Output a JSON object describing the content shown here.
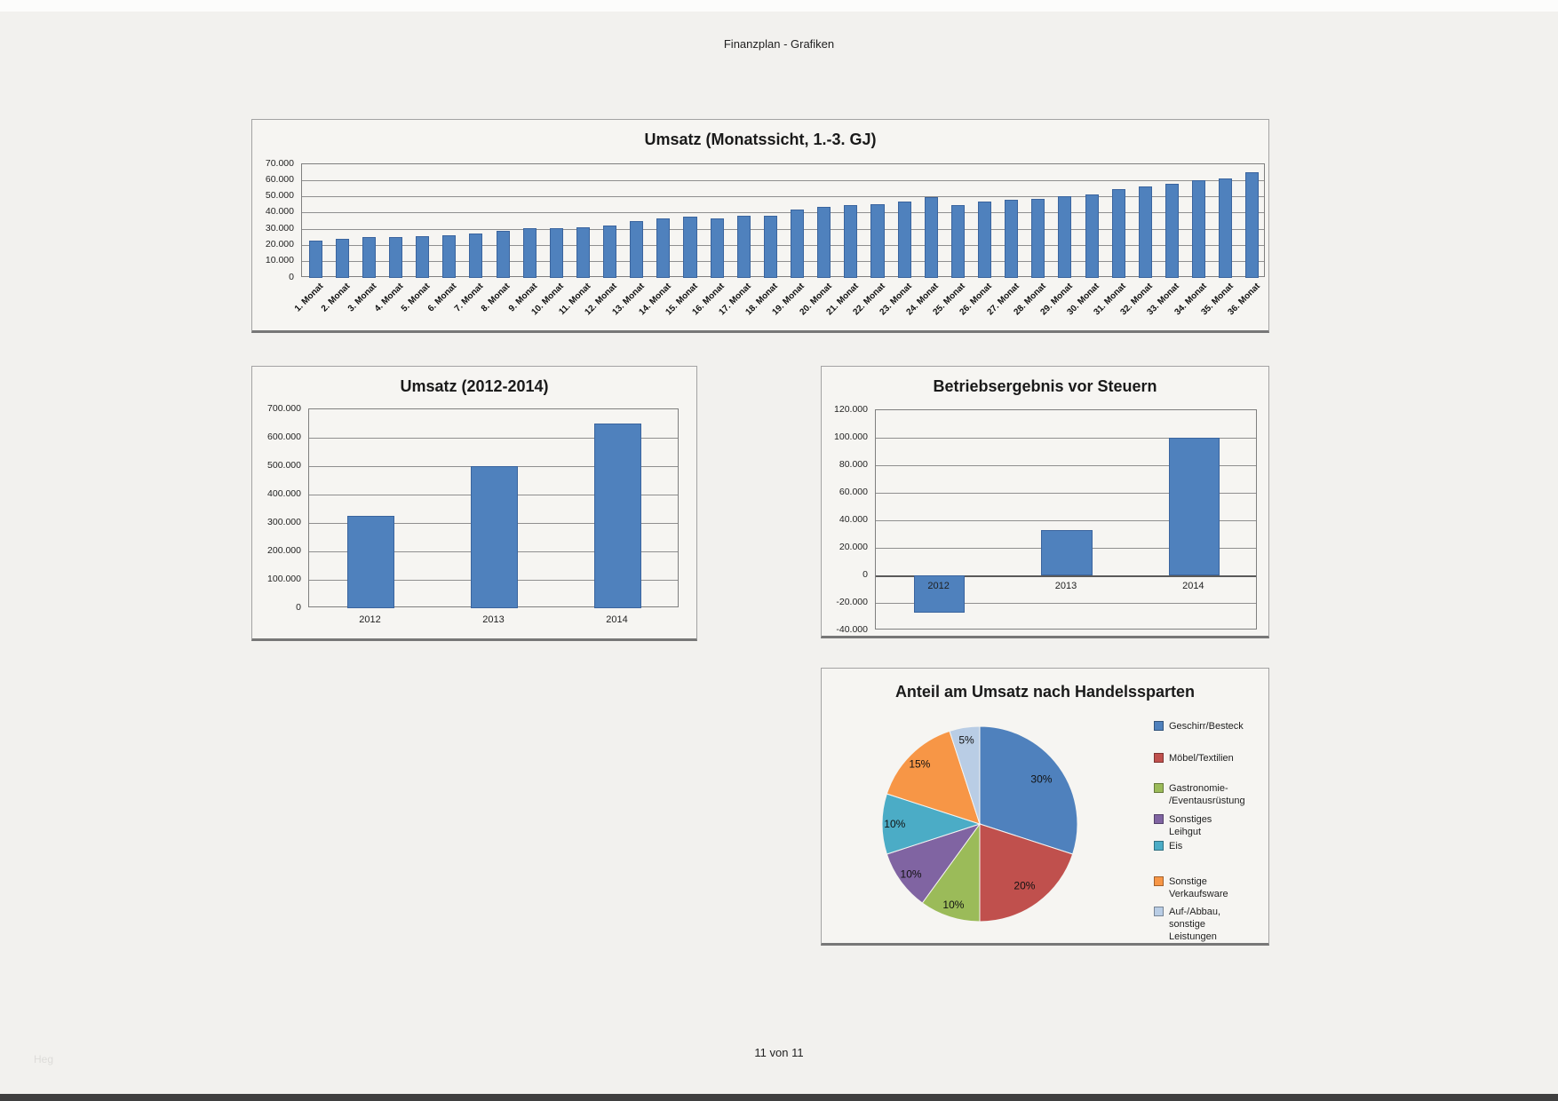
{
  "page": {
    "header_title": "Finanzplan - Grafiken",
    "footer_page": "11 von 11",
    "watermark": "Heg"
  },
  "colors": {
    "bar": "#4f81bd",
    "bar_border": "#3a649e",
    "grid": "#8f8f8f",
    "panel_bg": "#f6f5f2",
    "page_bg": "#f2f1ee"
  },
  "chart_data": [
    {
      "type": "bar",
      "title": "Umsatz (Monatssicht, 1.-3. GJ)",
      "categories": [
        "1. Monat",
        "2. Monat",
        "3. Monat",
        "4. Monat",
        "5. Monat",
        "6. Monat",
        "7. Monat",
        "8. Monat",
        "9. Monat",
        "10. Monat",
        "11. Monat",
        "12. Monat",
        "13. Monat",
        "14. Monat",
        "15. Monat",
        "16. Monat",
        "17. Monat",
        "18. Monat",
        "19. Monat",
        "20. Monat",
        "21. Monat",
        "22. Monat",
        "23. Monat",
        "24. Monat",
        "25. Monat",
        "26. Monat",
        "27. Monat",
        "28. Monat",
        "29. Monat",
        "30. Monat",
        "31. Monat",
        "32. Monat",
        "33. Monat",
        "34. Monat",
        "35. Monat",
        "36. Monat"
      ],
      "values": [
        23000,
        24000,
        25000,
        25000,
        25500,
        26000,
        27500,
        29000,
        30500,
        30500,
        31000,
        32500,
        35000,
        36500,
        38000,
        36500,
        38500,
        38500,
        42000,
        43500,
        45000,
        45500,
        47000,
        49500,
        45000,
        47000,
        48000,
        48500,
        50500,
        51500,
        54500,
        56500,
        58000,
        60000,
        61500,
        65000
      ],
      "xlabel": "",
      "ylabel": "",
      "ylim": [
        0,
        70000
      ],
      "ytick_step": 10000,
      "ytick_labels": [
        "0",
        "10.000",
        "20.000",
        "30.000",
        "40.000",
        "50.000",
        "60.000",
        "70.000"
      ],
      "grid": true,
      "legend": "none"
    },
    {
      "type": "bar",
      "title": "Umsatz (2012-2014)",
      "categories": [
        "2012",
        "2013",
        "2014"
      ],
      "values": [
        325000,
        500000,
        650000
      ],
      "xlabel": "",
      "ylabel": "",
      "ylim": [
        0,
        700000
      ],
      "ytick_step": 100000,
      "ytick_labels": [
        "0",
        "100.000",
        "200.000",
        "300.000",
        "400.000",
        "500.000",
        "600.000",
        "700.000"
      ],
      "grid": true,
      "legend": "none"
    },
    {
      "type": "bar",
      "title": "Betriebsergebnis vor Steuern",
      "categories": [
        "2012",
        "2013",
        "2014"
      ],
      "values": [
        -27000,
        33000,
        100000
      ],
      "xlabel": "",
      "ylabel": "",
      "ylim": [
        -40000,
        120000
      ],
      "ytick_step": 20000,
      "ytick_labels": [
        "-40.000",
        "-20.000",
        "0",
        "20.000",
        "40.000",
        "60.000",
        "80.000",
        "100.000",
        "120.000"
      ],
      "grid": true,
      "legend": "none"
    },
    {
      "type": "pie",
      "title": "Anteil am Umsatz nach Handelssparten",
      "legend_position": "right",
      "slices": [
        {
          "label": "Geschirr/Besteck",
          "value": 30,
          "pct_label": "30%",
          "color": "#4f81bd"
        },
        {
          "label": "Möbel/Textilien",
          "value": 20,
          "pct_label": "20%",
          "color": "#c0504d"
        },
        {
          "label": "Gastronomie-/Eventausrüstung",
          "label_lines": [
            "Gastronomie-",
            "/Eventausrüstung"
          ],
          "value": 10,
          "pct_label": "10%",
          "color": "#9bbb59"
        },
        {
          "label": "Sonstiges Leihgut",
          "value": 10,
          "pct_label": "10%",
          "color": "#8064a2"
        },
        {
          "label": "Eis",
          "value": 10,
          "pct_label": "10%",
          "color": "#4bacc6"
        },
        {
          "label": "Sonstige Verkaufsware",
          "value": 15,
          "pct_label": "15%",
          "color": "#f79646"
        },
        {
          "label": "Auf-/Abbau, sonstige Leistungen",
          "label_lines": [
            "Auf-/Abbau, sonstige",
            "Leistungen"
          ],
          "value": 5,
          "pct_label": "5%",
          "color": "#b9cde5"
        }
      ]
    }
  ]
}
